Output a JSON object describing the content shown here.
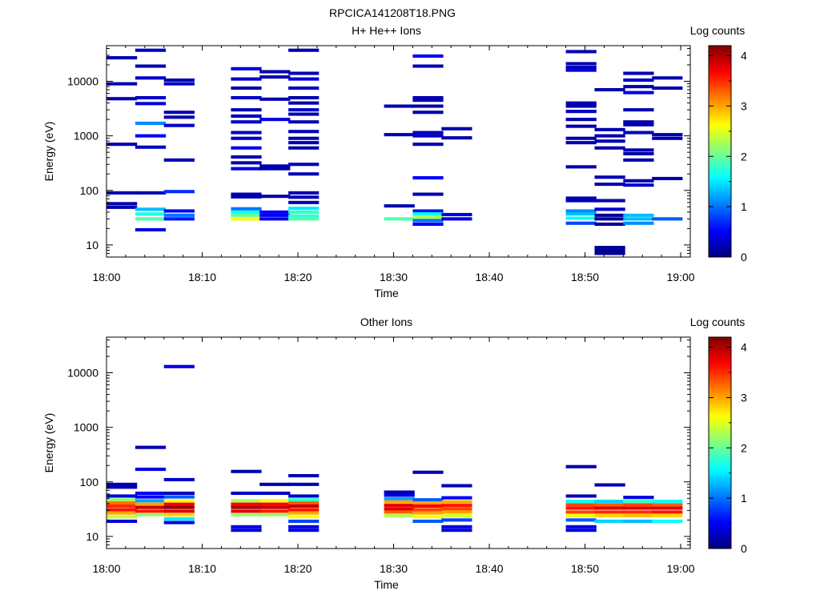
{
  "figure": {
    "title": "RPCICA141208T18.PNG"
  },
  "colormap": [
    "#00007f",
    "#0000ff",
    "#007fff",
    "#00ffff",
    "#7fff7f",
    "#ffff00",
    "#ff7f00",
    "#ff0000",
    "#7f0000"
  ],
  "chart_data": [
    {
      "type": "heatmap",
      "title": "H+ He++ Ions",
      "xlabel": "Time",
      "ylabel": "Energy (eV)",
      "x_tick_labels": [
        "18:00",
        "18:10",
        "18:20",
        "18:30",
        "18:40",
        "18:50",
        "19:00"
      ],
      "y_tick_labels": [
        "10",
        "100",
        "1000",
        "10000"
      ],
      "y_scale": "log",
      "ylim": [
        6,
        45000
      ],
      "xlim": [
        "18:00",
        "19:01"
      ],
      "colorbar": {
        "label": "Log counts",
        "range": [
          0,
          4.2
        ],
        "tick_labels": [
          "0",
          "1",
          "2",
          "3",
          "4"
        ]
      },
      "time_bins": [
        "18:00",
        "18:03",
        "18:06",
        "18:13",
        "18:16",
        "18:19",
        "18:29",
        "18:32",
        "18:35",
        "18:38",
        "18:48",
        "18:51",
        "18:54",
        "18:57"
      ],
      "bin_width_min": 3.2,
      "cells": [
        [
          0,
          27000,
          0.2
        ],
        [
          0,
          9000,
          0.2
        ],
        [
          0,
          4800,
          0.2
        ],
        [
          0,
          700,
          0.2
        ],
        [
          0,
          90,
          0.2
        ],
        [
          0,
          57,
          0.2
        ],
        [
          0,
          49,
          0.2
        ],
        [
          1,
          37000,
          0.3
        ],
        [
          1,
          19000,
          0.2
        ],
        [
          1,
          11500,
          0.3
        ],
        [
          1,
          5000,
          0.3
        ],
        [
          1,
          3900,
          0.4
        ],
        [
          1,
          1700,
          1.1
        ],
        [
          1,
          1000,
          0.5
        ],
        [
          1,
          620,
          0.3
        ],
        [
          1,
          90,
          0.2
        ],
        [
          1,
          45,
          1.3
        ],
        [
          1,
          37,
          1.7
        ],
        [
          1,
          30,
          1.9
        ],
        [
          1,
          19,
          0.4
        ],
        [
          2,
          10500,
          0.2
        ],
        [
          2,
          9000,
          0.3
        ],
        [
          2,
          2700,
          0.2
        ],
        [
          2,
          2200,
          0.2
        ],
        [
          2,
          1550,
          0.3
        ],
        [
          2,
          360,
          0.2
        ],
        [
          2,
          95,
          0.7
        ],
        [
          2,
          42,
          0.5
        ],
        [
          2,
          35,
          1.0
        ],
        [
          2,
          30,
          0.6
        ],
        [
          3,
          17000,
          0.4
        ],
        [
          3,
          11000,
          0.3
        ],
        [
          3,
          7500,
          0.2
        ],
        [
          3,
          5000,
          0.3
        ],
        [
          3,
          3000,
          0.2
        ],
        [
          3,
          2300,
          0.2
        ],
        [
          3,
          1800,
          0.3
        ],
        [
          3,
          1150,
          0.2
        ],
        [
          3,
          900,
          0.3
        ],
        [
          3,
          600,
          0.5
        ],
        [
          3,
          410,
          0.2
        ],
        [
          3,
          320,
          0.2
        ],
        [
          3,
          250,
          0.4
        ],
        [
          3,
          85,
          0.2
        ],
        [
          3,
          76,
          0.2
        ],
        [
          3,
          46,
          1.0
        ],
        [
          3,
          40,
          1.6
        ],
        [
          3,
          35,
          2.0
        ],
        [
          3,
          30,
          2.6
        ],
        [
          4,
          15000,
          0.2
        ],
        [
          4,
          12000,
          0.2
        ],
        [
          4,
          4700,
          0.2
        ],
        [
          4,
          2000,
          0.4
        ],
        [
          4,
          280,
          0.2
        ],
        [
          4,
          250,
          0.2
        ],
        [
          4,
          78,
          0.2
        ],
        [
          4,
          40,
          0.5
        ],
        [
          4,
          35,
          0.5
        ],
        [
          4,
          30,
          0.4
        ],
        [
          5,
          37000,
          0.2
        ],
        [
          5,
          14000,
          0.2
        ],
        [
          5,
          11000,
          0.4
        ],
        [
          5,
          7500,
          0.3
        ],
        [
          5,
          5000,
          0.2
        ],
        [
          5,
          4000,
          0.2
        ],
        [
          5,
          3000,
          0.3
        ],
        [
          5,
          2500,
          0.2
        ],
        [
          5,
          1800,
          0.2
        ],
        [
          5,
          1200,
          0.2
        ],
        [
          5,
          900,
          0.2
        ],
        [
          5,
          750,
          0.2
        ],
        [
          5,
          600,
          0.2
        ],
        [
          5,
          300,
          0.2
        ],
        [
          5,
          200,
          0.2
        ],
        [
          5,
          90,
          0.2
        ],
        [
          5,
          75,
          0.2
        ],
        [
          5,
          60,
          0.2
        ],
        [
          5,
          47,
          1.5
        ],
        [
          5,
          40,
          1.8
        ],
        [
          5,
          34,
          1.8
        ],
        [
          5,
          30,
          1.9
        ],
        [
          6,
          3500,
          0.2
        ],
        [
          6,
          1050,
          0.2
        ],
        [
          6,
          52,
          0.2
        ],
        [
          6,
          30,
          1.9
        ],
        [
          7,
          29000,
          0.5
        ],
        [
          7,
          19000,
          0.2
        ],
        [
          7,
          5000,
          0.2
        ],
        [
          7,
          4500,
          0.2
        ],
        [
          7,
          3500,
          0.2
        ],
        [
          7,
          2700,
          0.2
        ],
        [
          7,
          1150,
          0.2
        ],
        [
          7,
          1000,
          0.3
        ],
        [
          7,
          700,
          0.2
        ],
        [
          7,
          170,
          0.5
        ],
        [
          7,
          85,
          0.2
        ],
        [
          7,
          42,
          0.6
        ],
        [
          7,
          37,
          1.6
        ],
        [
          7,
          32,
          2.3
        ],
        [
          7,
          28,
          1.0
        ],
        [
          7,
          24,
          0.5
        ],
        [
          8,
          1350,
          0.2
        ],
        [
          8,
          920,
          0.2
        ],
        [
          8,
          36,
          0.4
        ],
        [
          8,
          30,
          0.4
        ],
        [
          10,
          35000,
          0.2
        ],
        [
          10,
          21000,
          0.2
        ],
        [
          10,
          18000,
          0.2
        ],
        [
          10,
          16000,
          0.4
        ],
        [
          10,
          4000,
          0.2
        ],
        [
          10,
          3500,
          0.2
        ],
        [
          10,
          2800,
          0.3
        ],
        [
          10,
          2000,
          0.2
        ],
        [
          10,
          1500,
          0.2
        ],
        [
          10,
          900,
          0.2
        ],
        [
          10,
          750,
          0.2
        ],
        [
          10,
          270,
          0.2
        ],
        [
          10,
          72,
          0.2
        ],
        [
          10,
          65,
          0.2
        ],
        [
          10,
          42,
          1.1
        ],
        [
          10,
          37,
          1.3
        ],
        [
          10,
          31,
          1.6
        ],
        [
          10,
          25,
          0.8
        ],
        [
          11,
          7000,
          0.2
        ],
        [
          11,
          1300,
          0.2
        ],
        [
          11,
          1000,
          0.2
        ],
        [
          11,
          800,
          0.2
        ],
        [
          11,
          600,
          0.2
        ],
        [
          11,
          175,
          0.2
        ],
        [
          11,
          130,
          0.2
        ],
        [
          11,
          65,
          0.2
        ],
        [
          11,
          45,
          0.3
        ],
        [
          11,
          35,
          0.1
        ],
        [
          11,
          30,
          0.1
        ],
        [
          11,
          24,
          0.1
        ],
        [
          11,
          9,
          0.1
        ],
        [
          11,
          8,
          0.1
        ],
        [
          11,
          7,
          0.1
        ],
        [
          12,
          14000,
          0.2
        ],
        [
          12,
          10500,
          0.3
        ],
        [
          12,
          8000,
          0.2
        ],
        [
          12,
          6200,
          0.4
        ],
        [
          12,
          3000,
          0.2
        ],
        [
          12,
          1800,
          0.2
        ],
        [
          12,
          1600,
          0.2
        ],
        [
          12,
          1150,
          0.2
        ],
        [
          12,
          550,
          0.2
        ],
        [
          12,
          470,
          0.2
        ],
        [
          12,
          360,
          0.2
        ],
        [
          12,
          150,
          0.2
        ],
        [
          12,
          125,
          0.3
        ],
        [
          12,
          35,
          1.3
        ],
        [
          12,
          30,
          1.3
        ],
        [
          12,
          25,
          1.1
        ],
        [
          13,
          11500,
          0.2
        ],
        [
          13,
          7500,
          0.2
        ],
        [
          13,
          1050,
          0.2
        ],
        [
          13,
          900,
          0.2
        ],
        [
          13,
          165,
          0.2
        ],
        [
          13,
          30,
          0.9
        ]
      ]
    },
    {
      "type": "heatmap",
      "title": "Other Ions",
      "xlabel": "Time",
      "ylabel": "Energy (eV)",
      "x_tick_labels": [
        "18:00",
        "18:10",
        "18:20",
        "18:30",
        "18:40",
        "18:50",
        "19:00"
      ],
      "y_tick_labels": [
        "10",
        "100",
        "1000",
        "10000"
      ],
      "y_scale": "log",
      "ylim": [
        6,
        45000
      ],
      "xlim": [
        "18:00",
        "19:01"
      ],
      "colorbar": {
        "label": "Log counts",
        "range": [
          0,
          4.2
        ],
        "tick_labels": [
          "0",
          "1",
          "2",
          "3",
          "4"
        ]
      },
      "time_bins": [
        "18:00",
        "18:03",
        "18:06",
        "18:13",
        "18:16",
        "18:19",
        "18:29",
        "18:32",
        "18:35",
        "18:38",
        "18:48",
        "18:51",
        "18:54",
        "18:57"
      ],
      "bin_width_min": 3.2,
      "cells": [
        [
          0,
          90,
          0.2
        ],
        [
          0,
          80,
          0.2
        ],
        [
          0,
          55,
          0.4
        ],
        [
          0,
          47,
          2.2
        ],
        [
          0,
          41,
          3.2
        ],
        [
          0,
          36,
          3.5
        ],
        [
          0,
          31,
          3.6
        ],
        [
          0,
          27,
          3.0
        ],
        [
          0,
          23,
          2.4
        ],
        [
          0,
          19,
          0.4
        ],
        [
          1,
          430,
          0.2
        ],
        [
          1,
          170,
          0.4
        ],
        [
          1,
          62,
          0.5
        ],
        [
          1,
          53,
          0.5
        ],
        [
          1,
          45,
          1.2
        ],
        [
          1,
          39,
          3.0
        ],
        [
          1,
          34,
          3.9
        ],
        [
          1,
          29,
          3.6
        ],
        [
          1,
          25,
          2.2
        ],
        [
          2,
          13000,
          0.4
        ],
        [
          2,
          110,
          0.3
        ],
        [
          2,
          62,
          0.3
        ],
        [
          2,
          53,
          0.9
        ],
        [
          2,
          45,
          2.6
        ],
        [
          2,
          39,
          3.7
        ],
        [
          2,
          34,
          4.1
        ],
        [
          2,
          29,
          3.8
        ],
        [
          2,
          25,
          2.8
        ],
        [
          2,
          21,
          1.5
        ],
        [
          2,
          18,
          0.4
        ],
        [
          3,
          155,
          0.2
        ],
        [
          3,
          62,
          0.3
        ],
        [
          3,
          45,
          2.3
        ],
        [
          3,
          39,
          3.7
        ],
        [
          3,
          34,
          4.0
        ],
        [
          3,
          29,
          3.8
        ],
        [
          3,
          25,
          2.2
        ],
        [
          3,
          15,
          0.4
        ],
        [
          3,
          13,
          0.4
        ],
        [
          4,
          90,
          0.2
        ],
        [
          4,
          62,
          0.3
        ],
        [
          4,
          45,
          2.6
        ],
        [
          4,
          39,
          3.7
        ],
        [
          4,
          34,
          3.9
        ],
        [
          4,
          29,
          3.6
        ],
        [
          4,
          25,
          2.2
        ],
        [
          5,
          130,
          0.2
        ],
        [
          5,
          90,
          0.2
        ],
        [
          5,
          55,
          0.3
        ],
        [
          5,
          47,
          1.8
        ],
        [
          5,
          41,
          3.3
        ],
        [
          5,
          36,
          3.9
        ],
        [
          5,
          31,
          3.6
        ],
        [
          5,
          27,
          3.0
        ],
        [
          5,
          23,
          2.6
        ],
        [
          5,
          19,
          0.8
        ],
        [
          5,
          15,
          0.4
        ],
        [
          5,
          13,
          0.4
        ],
        [
          6,
          65,
          0.2
        ],
        [
          6,
          57,
          0.4
        ],
        [
          6,
          49,
          1.2
        ],
        [
          6,
          43,
          3.0
        ],
        [
          6,
          37,
          3.8
        ],
        [
          6,
          32,
          3.8
        ],
        [
          6,
          28,
          3.3
        ],
        [
          6,
          24,
          2.3
        ],
        [
          7,
          150,
          0.2
        ],
        [
          7,
          47,
          0.9
        ],
        [
          7,
          41,
          3.0
        ],
        [
          7,
          36,
          3.7
        ],
        [
          7,
          31,
          3.4
        ],
        [
          7,
          27,
          3.0
        ],
        [
          7,
          23,
          2.6
        ],
        [
          7,
          19,
          0.9
        ],
        [
          8,
          85,
          0.2
        ],
        [
          8,
          51,
          0.5
        ],
        [
          8,
          43,
          3.0
        ],
        [
          8,
          37,
          3.6
        ],
        [
          8,
          32,
          3.4
        ],
        [
          8,
          28,
          3.0
        ],
        [
          8,
          24,
          2.5
        ],
        [
          8,
          20,
          0.8
        ],
        [
          8,
          15,
          0.4
        ],
        [
          8,
          13,
          0.4
        ],
        [
          10,
          190,
          0.2
        ],
        [
          10,
          55,
          0.2
        ],
        [
          10,
          44,
          1.6
        ],
        [
          10,
          38,
          3.4
        ],
        [
          10,
          33,
          3.6
        ],
        [
          10,
          28,
          3.4
        ],
        [
          10,
          24,
          2.6
        ],
        [
          10,
          20,
          0.9
        ],
        [
          10,
          15,
          0.4
        ],
        [
          10,
          13,
          0.4
        ],
        [
          11,
          88,
          0.2
        ],
        [
          11,
          44,
          1.4
        ],
        [
          11,
          38,
          3.3
        ],
        [
          11,
          33,
          3.8
        ],
        [
          11,
          28,
          3.5
        ],
        [
          11,
          24,
          2.8
        ],
        [
          11,
          19,
          1.4
        ],
        [
          12,
          52,
          0.4
        ],
        [
          12,
          44,
          1.8
        ],
        [
          12,
          38,
          3.4
        ],
        [
          12,
          33,
          3.8
        ],
        [
          12,
          28,
          3.5
        ],
        [
          12,
          24,
          2.9
        ],
        [
          12,
          19,
          1.3
        ],
        [
          13,
          44,
          1.6
        ],
        [
          13,
          38,
          3.3
        ],
        [
          13,
          33,
          3.8
        ],
        [
          13,
          28,
          3.6
        ],
        [
          13,
          24,
          2.8
        ],
        [
          13,
          19,
          1.6
        ]
      ]
    }
  ]
}
